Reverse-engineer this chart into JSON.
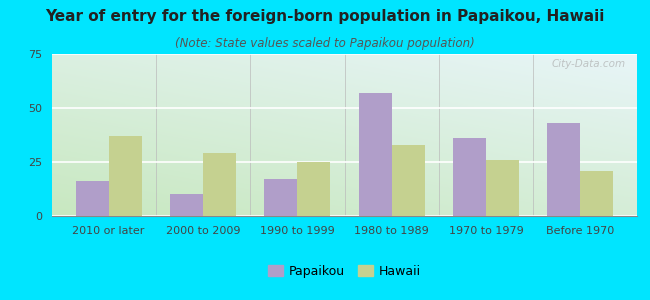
{
  "title": "Year of entry for the foreign-born population in Papaikou, Hawaii",
  "subtitle": "(Note: State values scaled to Papaikou population)",
  "categories": [
    "2010 or later",
    "2000 to 2009",
    "1990 to 1999",
    "1980 to 1989",
    "1970 to 1979",
    "Before 1970"
  ],
  "papaikou_values": [
    16,
    10,
    17,
    57,
    36,
    43
  ],
  "hawaii_values": [
    37,
    29,
    25,
    33,
    26,
    21
  ],
  "papaikou_color": "#b09ec9",
  "hawaii_color": "#c5d190",
  "background_outer": "#00e5ff",
  "background_top": "#e8f5f8",
  "background_bottom_left": "#d0e8c0",
  "ylim": [
    0,
    75
  ],
  "yticks": [
    0,
    25,
    50,
    75
  ],
  "legend_labels": [
    "Papaikou",
    "Hawaii"
  ],
  "title_fontsize": 11,
  "subtitle_fontsize": 8.5,
  "tick_fontsize": 8,
  "legend_fontsize": 9,
  "watermark": "City-Data.com"
}
